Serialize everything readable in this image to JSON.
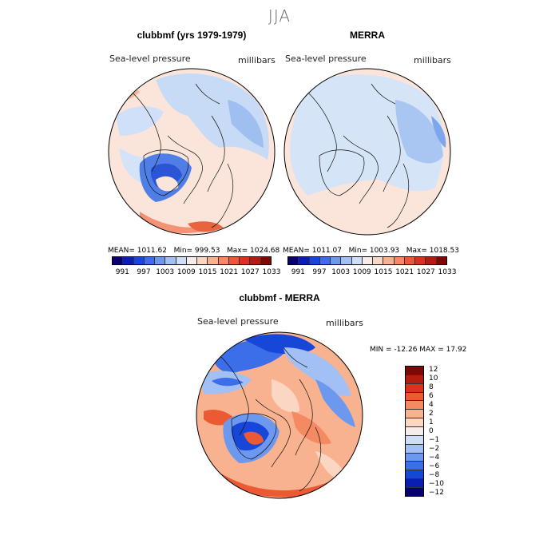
{
  "season": "JJA",
  "panels": [
    {
      "title": "clubbmf (yrs 1979-1979)",
      "variable": "Sea-level pressure",
      "units": "millibars",
      "stats": {
        "mean": "MEAN= 1011.62",
        "min": "Min= 999.53",
        "max": "Max= 1024.68"
      }
    },
    {
      "title": "MERRA",
      "variable": "Sea-level pressure",
      "units": "millibars",
      "stats": {
        "mean": "MEAN= 1011.07",
        "min": "Min= 1003.93",
        "max": "Max= 1018.53"
      }
    },
    {
      "title": "clubbmf - MERRA",
      "variable": "Sea-level pressure",
      "units": "millibars",
      "stats_line": "MIN = -12.26 MAX =  17.92"
    }
  ],
  "colorbar_abs": {
    "colors": [
      "#08006b",
      "#0a1fb0",
      "#1747d8",
      "#3b6ee8",
      "#6d98f0",
      "#a3c0f5",
      "#cfdef8",
      "#f5ecec",
      "#fbd6c2",
      "#f8b28f",
      "#f48a62",
      "#ec5a34",
      "#d8331c",
      "#b11d10",
      "#7c0a04"
    ],
    "labels": [
      "991",
      "997",
      "1003",
      "1009",
      "1015",
      "1021",
      "1027",
      "1033"
    ]
  },
  "colorbar_diff": {
    "colors": [
      "#7c0a04",
      "#b11d10",
      "#d8331c",
      "#ec5a34",
      "#f48a62",
      "#f8b28f",
      "#fbd6c2",
      "#f5ecec",
      "#cfdef8",
      "#a3c0f5",
      "#6d98f0",
      "#3b6ee8",
      "#1747d8",
      "#0a1fb0",
      "#08006b"
    ],
    "labels": [
      "12",
      "10",
      "8",
      "6",
      "4",
      "2",
      "1",
      "0",
      "−1",
      "−2",
      "−4",
      "−6",
      "−8",
      "−10",
      "−12"
    ]
  }
}
